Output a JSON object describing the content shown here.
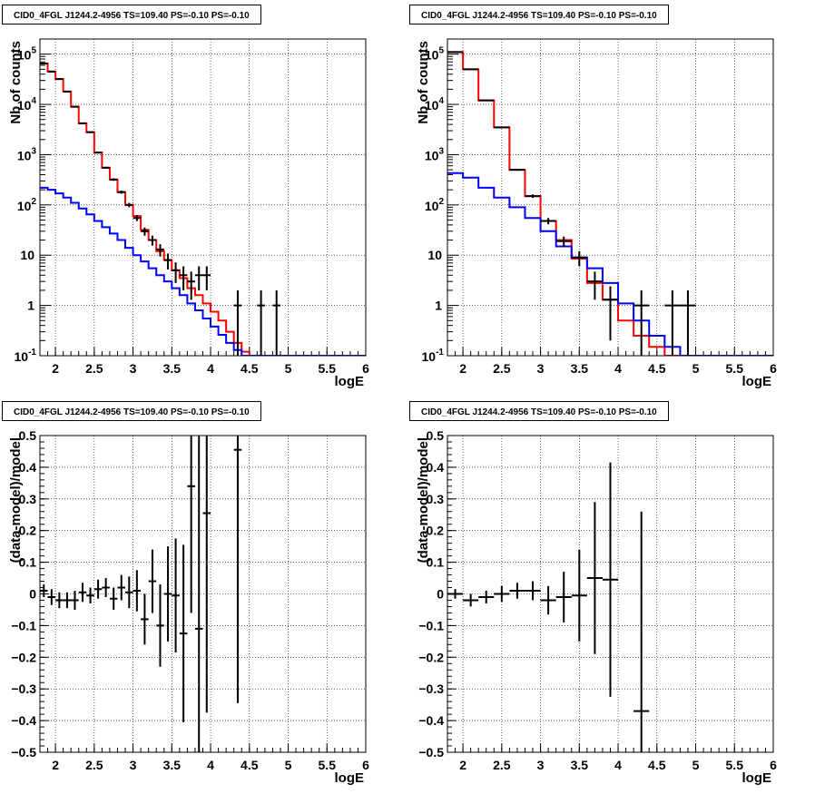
{
  "chart_data": [
    {
      "type": "line",
      "title": "CID0_4FGL J1244.2-4956 TS=109.40 PS=-0.10 PS=-0.10",
      "xlabel": "logE",
      "ylabel": "Nb of counts",
      "xlim": [
        1.8,
        6.0
      ],
      "ylim": [
        0.1,
        200000
      ],
      "log_y": true,
      "grid": true,
      "x_ticks": [
        "2",
        "2.5",
        "3",
        "3.5",
        "4",
        "4.5",
        "5",
        "5.5",
        "6"
      ],
      "y_ticks": [
        "10^-1",
        "1",
        "10",
        "10^2",
        "10^3",
        "10^4",
        "10^5"
      ],
      "bin_edges": [
        1.8,
        1.9,
        2.0,
        2.1,
        2.2,
        2.3,
        2.4,
        2.5,
        2.6,
        2.7,
        2.8,
        2.9,
        3.0,
        3.1,
        3.2,
        3.3,
        3.4,
        3.5,
        3.6,
        3.7,
        3.8,
        3.9,
        4.0,
        4.1,
        4.2,
        4.3,
        4.4,
        4.5,
        4.6,
        4.7,
        4.8,
        4.9,
        5.0,
        5.1,
        5.2,
        5.3,
        5.4,
        5.5,
        5.6,
        5.7,
        5.8,
        5.9,
        6.0
      ],
      "series": [
        {
          "color": "#ff0000",
          "values": [
            65000,
            45000,
            32000,
            18000,
            9000,
            4200,
            2800,
            1100,
            550,
            320,
            180,
            100,
            60,
            32,
            20,
            12,
            8,
            5,
            3.5,
            2.2,
            1.6,
            1.1,
            0.75,
            0.5,
            0.3,
            0.18,
            0.12,
            0.1,
            0.1,
            0.1,
            0.1,
            0.1,
            0.1,
            0.1,
            0.1,
            0.1,
            0.1,
            0.1,
            0.1,
            0.1,
            0.1,
            0.1
          ]
        },
        {
          "color": "#0000ff",
          "values": [
            220,
            200,
            170,
            140,
            110,
            85,
            65,
            48,
            36,
            27,
            20,
            14,
            10,
            7.5,
            5.5,
            4.0,
            3.0,
            2.2,
            1.6,
            1.1,
            0.8,
            0.55,
            0.38,
            0.26,
            0.18,
            0.13,
            0.1,
            0.1,
            0.1,
            0.1,
            0.1,
            0.1,
            0.1,
            0.1,
            0.1,
            0.1,
            0.1,
            0.1,
            0.1,
            0.1,
            0.1,
            0.1
          ]
        },
        {
          "color": "#000000",
          "kind": "points",
          "x": [
            1.85,
            1.95,
            2.05,
            2.15,
            2.25,
            2.35,
            2.45,
            2.55,
            2.65,
            2.75,
            2.85,
            2.95,
            3.05,
            3.15,
            3.25,
            3.35,
            3.45,
            3.55,
            3.65,
            3.75,
            3.85,
            3.95,
            4.35,
            4.65,
            4.85
          ],
          "values": [
            65000,
            45000,
            32000,
            18000,
            9000,
            4200,
            2800,
            1100,
            550,
            320,
            180,
            100,
            55,
            30,
            20,
            13,
            8,
            5,
            4,
            3,
            4,
            4,
            1,
            1,
            1
          ],
          "xerr": 0.05,
          "yerr": [
            255,
            212,
            179,
            134,
            95,
            65,
            53,
            33,
            23,
            18,
            13,
            10,
            7.4,
            5.5,
            4.5,
            3.6,
            2.8,
            2.2,
            2,
            1.7,
            2,
            2,
            1,
            1,
            1
          ]
        }
      ]
    },
    {
      "type": "line",
      "title": "CID0_4FGL J1244.2-4956 TS=109.40 PS=-0.10 PS=-0.10",
      "xlabel": "logE",
      "ylabel": "Nb of counts",
      "xlim": [
        1.8,
        6.0
      ],
      "ylim": [
        0.1,
        200000
      ],
      "log_y": true,
      "grid": true,
      "x_ticks": [
        "2",
        "2.5",
        "3",
        "3.5",
        "4",
        "4.5",
        "5",
        "5.5",
        "6"
      ],
      "y_ticks": [
        "10^-1",
        "1",
        "10",
        "10^2",
        "10^3",
        "10^4",
        "10^5"
      ],
      "bin_edges": [
        1.8,
        2.0,
        2.2,
        2.4,
        2.6,
        2.8,
        3.0,
        3.2,
        3.4,
        3.6,
        3.8,
        4.0,
        4.2,
        4.4,
        4.6,
        4.8,
        5.0,
        5.2,
        5.4,
        5.6,
        5.8,
        6.0
      ],
      "series": [
        {
          "color": "#ff0000",
          "values": [
            110000,
            50000,
            12000,
            3500,
            500,
            150,
            48,
            20,
            8.5,
            2.8,
            1.3,
            0.5,
            0.25,
            0.15,
            0.1,
            0.1,
            0.1,
            0.1,
            0.1,
            0.1,
            0.1
          ]
        },
        {
          "color": "#0000ff",
          "values": [
            430,
            350,
            220,
            140,
            90,
            55,
            30,
            15,
            9,
            5.5,
            2.8,
            1.1,
            0.5,
            0.25,
            0.15,
            0.1,
            0.1,
            0.1,
            0.1,
            0.1,
            0.1
          ]
        },
        {
          "color": "#000000",
          "kind": "points",
          "x": [
            1.9,
            2.1,
            2.3,
            2.5,
            2.7,
            2.9,
            3.1,
            3.3,
            3.5,
            3.7,
            3.9,
            4.3,
            4.7,
            4.9
          ],
          "values": [
            110000,
            50000,
            12000,
            3500,
            500,
            150,
            48,
            19,
            9,
            3,
            1.3,
            1,
            1,
            1
          ],
          "xerr": 0.1,
          "yerr": [
            332,
            224,
            110,
            59,
            22,
            12,
            7,
            4.4,
            3,
            1.7,
            1.1,
            1,
            1,
            1
          ]
        }
      ]
    },
    {
      "type": "scatter",
      "title": "CID0_4FGL J1244.2-4956 TS=109.40 PS=-0.10 PS=-0.10",
      "xlabel": "logE",
      "ylabel": "(data-model)/model",
      "xlim": [
        1.8,
        6.0
      ],
      "ylim": [
        -0.5,
        0.5
      ],
      "grid": true,
      "x_ticks": [
        "2",
        "2.5",
        "3",
        "3.5",
        "4",
        "4.5",
        "5",
        "5.5",
        "6"
      ],
      "y_ticks": [
        "-0.5",
        "-0.4",
        "-0.3",
        "-0.2",
        "-0.1",
        "0",
        "0.1",
        "0.2",
        "0.3",
        "0.4",
        "0.5"
      ],
      "series": [
        {
          "color": "#000000",
          "x": [
            1.85,
            1.95,
            2.05,
            2.15,
            2.25,
            2.35,
            2.45,
            2.55,
            2.65,
            2.75,
            2.85,
            2.95,
            3.05,
            3.15,
            3.25,
            3.35,
            3.45,
            3.55,
            3.65,
            3.75,
            3.85,
            3.95,
            4.35
          ],
          "values": [
            0.01,
            -0.01,
            -0.02,
            -0.02,
            -0.02,
            0.005,
            -0.005,
            0.015,
            0.02,
            -0.015,
            0.02,
            0.005,
            0.01,
            -0.08,
            0.04,
            -0.1,
            0.0,
            -0.005,
            -0.125,
            0.34,
            -0.11,
            0.255,
            0.455
          ],
          "xerr": 0.05,
          "yerr": [
            0.02,
            0.025,
            0.025,
            0.025,
            0.03,
            0.03,
            0.025,
            0.03,
            0.03,
            0.035,
            0.04,
            0.05,
            0.065,
            0.08,
            0.1,
            0.13,
            0.15,
            0.18,
            0.28,
            0.4,
            0.65,
            0.63,
            0.8
          ]
        }
      ]
    },
    {
      "type": "scatter",
      "title": "CID0_4FGL J1244.2-4956 TS=109.40 PS=-0.10 PS=-0.10",
      "xlabel": "logE",
      "ylabel": "(data-model)/model",
      "xlim": [
        1.8,
        6.0
      ],
      "ylim": [
        -0.5,
        0.5
      ],
      "grid": true,
      "x_ticks": [
        "2",
        "2.5",
        "3",
        "3.5",
        "4",
        "4.5",
        "5",
        "5.5",
        "6"
      ],
      "y_ticks": [
        "-0.5",
        "-0.4",
        "-0.3",
        "-0.2",
        "-0.1",
        "0",
        "0.1",
        "0.2",
        "0.3",
        "0.4",
        "0.5"
      ],
      "series": [
        {
          "color": "#000000",
          "x": [
            1.9,
            2.1,
            2.3,
            2.5,
            2.7,
            2.9,
            3.1,
            3.3,
            3.5,
            3.7,
            3.9,
            4.3
          ],
          "values": [
            0.0,
            -0.02,
            -0.01,
            0.0,
            0.01,
            0.01,
            -0.02,
            -0.01,
            -0.005,
            0.05,
            0.045,
            -0.37
          ],
          "xerr": 0.1,
          "yerr": [
            0.015,
            0.02,
            0.02,
            0.025,
            0.025,
            0.03,
            0.045,
            0.08,
            0.145,
            0.24,
            0.37,
            0.63
          ]
        }
      ]
    }
  ]
}
